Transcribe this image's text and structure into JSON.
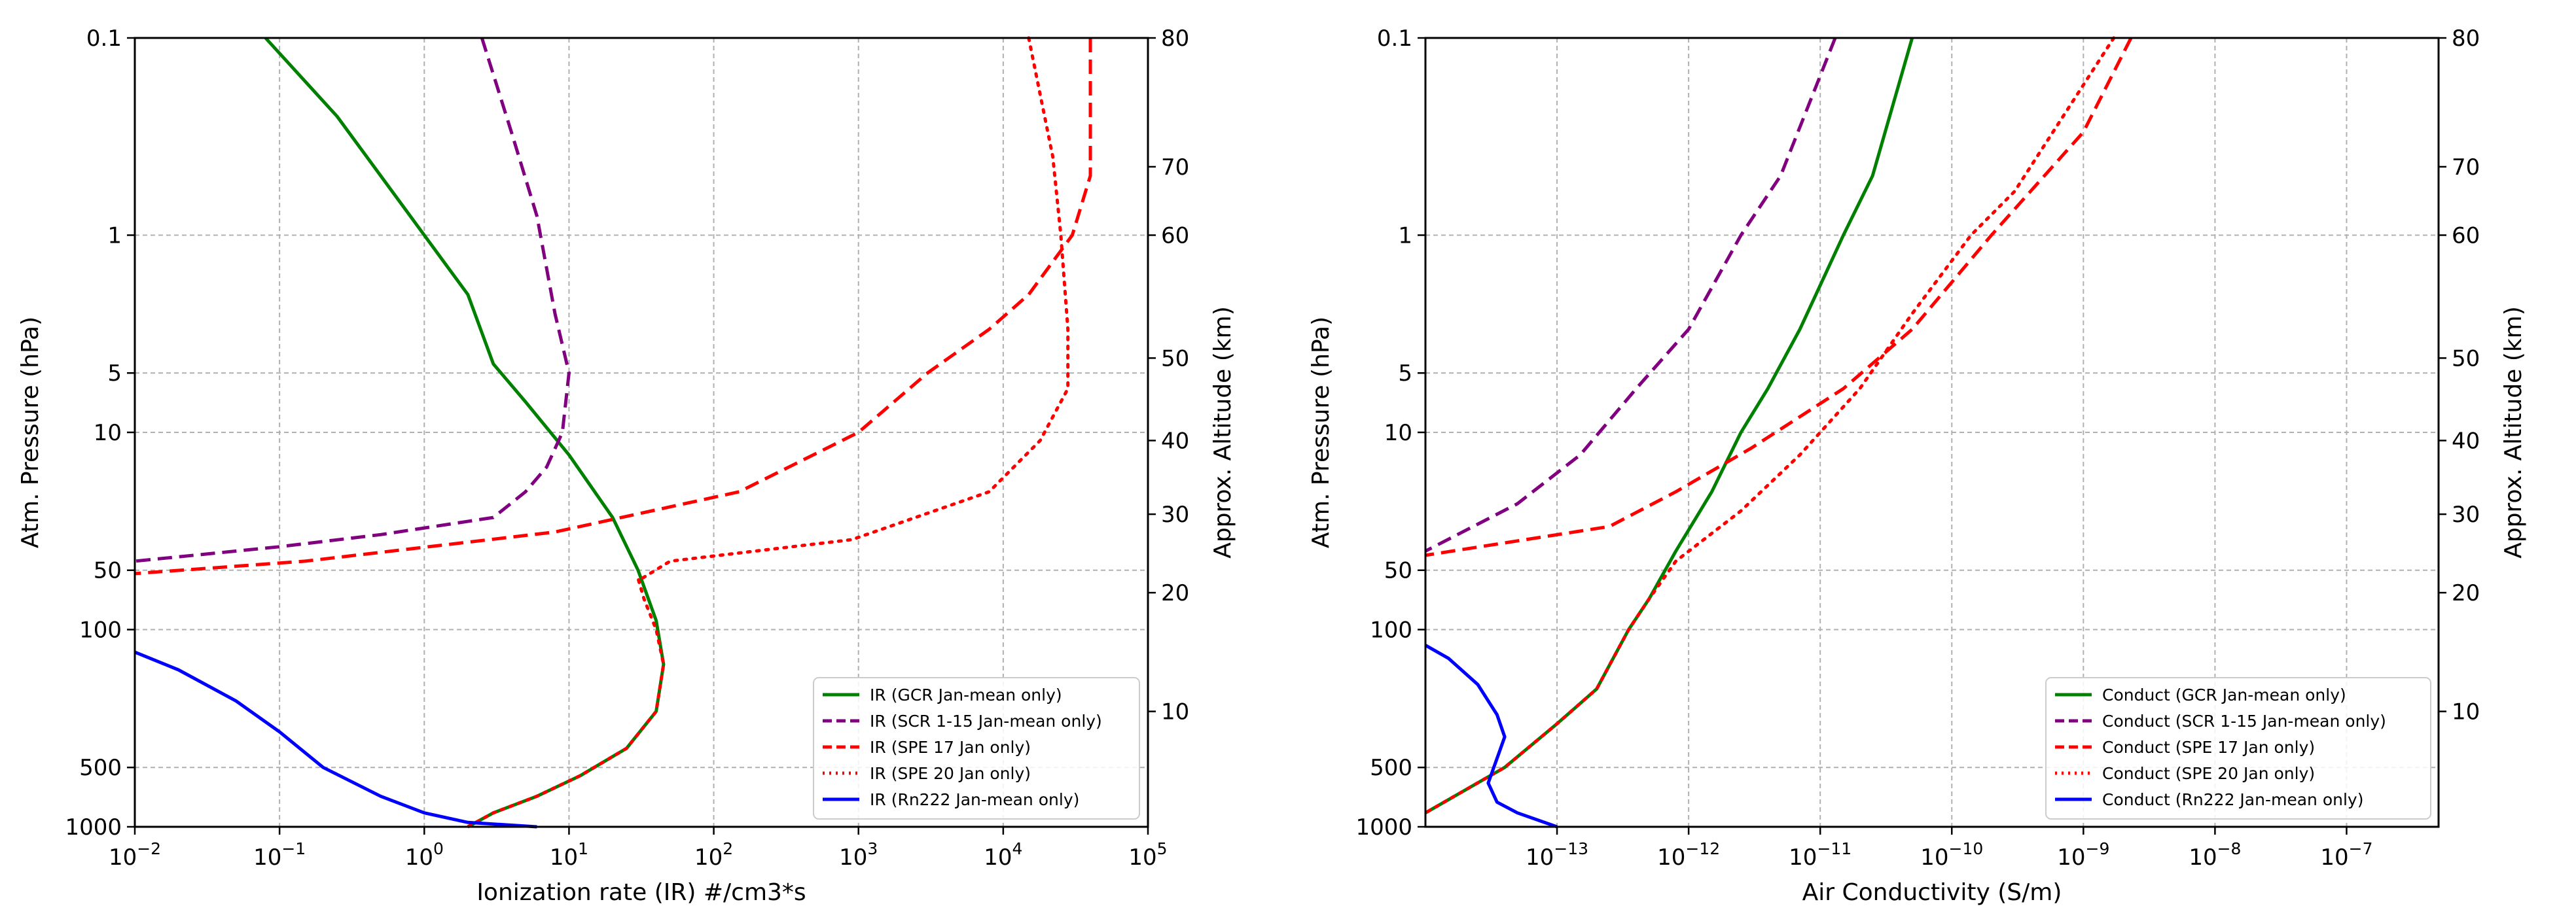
{
  "figure": {
    "description_free": true
  },
  "chart_data": [
    {
      "type": "line",
      "xscale": "log",
      "yscale": "log",
      "xlim": [
        0.01,
        100000
      ],
      "ylim_pressure": [
        1000,
        0.1
      ],
      "xlabel": "Ionization rate (IR) #/cm3*s",
      "ylabel": "Atm. Pressure (hPa)",
      "y2label": "Approx. Altitude (km)",
      "x_ticks": [
        {
          "value": 0.01,
          "base": "10",
          "exp": "−2"
        },
        {
          "value": 0.1,
          "base": "10",
          "exp": "−1"
        },
        {
          "value": 1,
          "base": "10",
          "exp": "0"
        },
        {
          "value": 10,
          "base": "10",
          "exp": "1"
        },
        {
          "value": 100,
          "base": "10",
          "exp": "2"
        },
        {
          "value": 1000,
          "base": "10",
          "exp": "3"
        },
        {
          "value": 10000,
          "base": "10",
          "exp": "4"
        },
        {
          "value": 100000,
          "base": "10",
          "exp": "5"
        }
      ],
      "y_ticks": [
        {
          "value": 0.1,
          "label": "0.1"
        },
        {
          "value": 1,
          "label": "1"
        },
        {
          "value": 5,
          "label": "5"
        },
        {
          "value": 10,
          "label": "10"
        },
        {
          "value": 50,
          "label": "50"
        },
        {
          "value": 100,
          "label": "100"
        },
        {
          "value": 500,
          "label": "500"
        },
        {
          "value": 1000,
          "label": "1000"
        }
      ],
      "altitude_ticks": [
        {
          "pressure": 0.1,
          "label": "80"
        },
        {
          "pressure": 0.45,
          "label": "70"
        },
        {
          "pressure": 1.0,
          "label": "60"
        },
        {
          "pressure": 4.2,
          "label": "50"
        },
        {
          "pressure": 11,
          "label": "40"
        },
        {
          "pressure": 26,
          "label": "30"
        },
        {
          "pressure": 65,
          "label": "20"
        },
        {
          "pressure": 260,
          "label": "10"
        }
      ],
      "legend_position": "lower-right",
      "series": [
        {
          "name": "IR (GCR Jan-mean only)",
          "color": "#008000",
          "style": "solid",
          "points": [
            [
              0.08,
              0.1
            ],
            [
              0.25,
              0.25
            ],
            [
              0.6,
              0.6
            ],
            [
              1.5,
              1.5
            ],
            [
              2,
              2
            ],
            [
              3,
              4.5
            ],
            [
              5,
              7
            ],
            [
              10,
              13
            ],
            [
              20,
              27
            ],
            [
              30,
              50
            ],
            [
              40,
              90
            ],
            [
              45,
              150
            ],
            [
              40,
              260
            ],
            [
              25,
              400
            ],
            [
              12,
              550
            ],
            [
              6,
              700
            ],
            [
              3,
              850
            ],
            [
              2,
              1000
            ]
          ]
        },
        {
          "name": "IR (SCR 1-15 Jan-mean only)",
          "color": "#800080",
          "style": "dashed",
          "points": [
            [
              2.5,
              0.1
            ],
            [
              4,
              0.3
            ],
            [
              6,
              0.8
            ],
            [
              8,
              2.5
            ],
            [
              10,
              5
            ],
            [
              9,
              10
            ],
            [
              7,
              15
            ],
            [
              5,
              20
            ],
            [
              3,
              27
            ],
            [
              0.5,
              33
            ],
            [
              0.1,
              38
            ],
            [
              0.01,
              45
            ]
          ]
        },
        {
          "name": "IR (SPE 17 Jan only)",
          "color": "#ff0000",
          "style": "dashed",
          "points": [
            [
              40000,
              0.1
            ],
            [
              40000,
              0.5
            ],
            [
              30000,
              1
            ],
            [
              15000,
              2
            ],
            [
              8000,
              3
            ],
            [
              3000,
              5
            ],
            [
              1000,
              10
            ],
            [
              150,
              20
            ],
            [
              8,
              32
            ],
            [
              0.15,
              45
            ],
            [
              0.01,
              52
            ]
          ]
        },
        {
          "name": "IR (SPE 20 Jan only)",
          "color": "#ff0000",
          "style": "dotted",
          "points": [
            [
              15000,
              0.1
            ],
            [
              22000,
              0.4
            ],
            [
              25000,
              1
            ],
            [
              28000,
              3
            ],
            [
              28000,
              6
            ],
            [
              18000,
              11
            ],
            [
              8000,
              20
            ],
            [
              900,
              35
            ],
            [
              50,
              45
            ],
            [
              32,
              55
            ],
            [
              30,
              55
            ],
            [
              33,
              70
            ],
            [
              40,
              100
            ],
            [
              45,
              150
            ],
            [
              40,
              260
            ],
            [
              25,
              400
            ],
            [
              12,
              550
            ],
            [
              6,
              700
            ],
            [
              3,
              850
            ],
            [
              2,
              1000
            ]
          ]
        },
        {
          "name": "IR (Rn222 Jan-mean only)",
          "color": "#0000ff",
          "style": "solid",
          "points": [
            [
              0.01,
              130
            ],
            [
              0.02,
              160
            ],
            [
              0.05,
              230
            ],
            [
              0.1,
              330
            ],
            [
              0.2,
              500
            ],
            [
              0.5,
              700
            ],
            [
              1,
              850
            ],
            [
              2,
              950
            ],
            [
              6,
              1000
            ]
          ]
        }
      ]
    },
    {
      "type": "line",
      "xscale": "log",
      "yscale": "log",
      "xlim": [
        1e-14,
        5e-07
      ],
      "ylim_pressure": [
        1000,
        0.1
      ],
      "xlabel": "Air Conductivity (S/m)",
      "ylabel": "Atm. Pressure (hPa)",
      "y2label": "Approx. Altitude (km)",
      "x_ticks": [
        {
          "value": 1e-13,
          "base": "10",
          "exp": "−13"
        },
        {
          "value": 1e-12,
          "base": "10",
          "exp": "−12"
        },
        {
          "value": 1e-11,
          "base": "10",
          "exp": "−11"
        },
        {
          "value": 1e-10,
          "base": "10",
          "exp": "−10"
        },
        {
          "value": 1e-09,
          "base": "10",
          "exp": "−9"
        },
        {
          "value": 1e-08,
          "base": "10",
          "exp": "−8"
        },
        {
          "value": 1e-07,
          "base": "10",
          "exp": "−7"
        }
      ],
      "y_ticks": [
        {
          "value": 0.1,
          "label": "0.1"
        },
        {
          "value": 1,
          "label": "1"
        },
        {
          "value": 5,
          "label": "5"
        },
        {
          "value": 10,
          "label": "10"
        },
        {
          "value": 50,
          "label": "50"
        },
        {
          "value": 100,
          "label": "100"
        },
        {
          "value": 500,
          "label": "500"
        },
        {
          "value": 1000,
          "label": "1000"
        }
      ],
      "altitude_ticks": [
        {
          "pressure": 0.1,
          "label": "80"
        },
        {
          "pressure": 0.45,
          "label": "70"
        },
        {
          "pressure": 1.0,
          "label": "60"
        },
        {
          "pressure": 4.2,
          "label": "50"
        },
        {
          "pressure": 11,
          "label": "40"
        },
        {
          "pressure": 26,
          "label": "30"
        },
        {
          "pressure": 65,
          "label": "20"
        },
        {
          "pressure": 260,
          "label": "10"
        }
      ],
      "legend_position": "lower-right",
      "series": [
        {
          "name": "Conduct (GCR Jan-mean only)",
          "color": "#008000",
          "style": "solid",
          "points": [
            [
              5e-11,
              0.1
            ],
            [
              2.5e-11,
              0.5
            ],
            [
              1.5e-11,
              1
            ],
            [
              7e-12,
              3
            ],
            [
              4e-12,
              6
            ],
            [
              2.5e-12,
              10
            ],
            [
              1.5e-12,
              20
            ],
            [
              8e-13,
              40
            ],
            [
              5e-13,
              70
            ],
            [
              3.5e-13,
              100
            ],
            [
              2e-13,
              200
            ],
            [
              1e-13,
              300
            ],
            [
              4e-14,
              500
            ],
            [
              1e-14,
              850
            ]
          ]
        },
        {
          "name": "Conduct (SCR 1-15 Jan-mean only)",
          "color": "#800080",
          "style": "dashed",
          "points": [
            [
              1.3e-11,
              0.1
            ],
            [
              5e-12,
              0.5
            ],
            [
              2.5e-12,
              1
            ],
            [
              1e-12,
              3
            ],
            [
              4e-13,
              6
            ],
            [
              1.5e-13,
              13
            ],
            [
              5e-14,
              23
            ],
            [
              1e-14,
              40
            ]
          ]
        },
        {
          "name": "Conduct (SPE 17 Jan only)",
          "color": "#ff0000",
          "style": "dashed",
          "points": [
            [
              2.3e-09,
              0.1
            ],
            [
              1e-09,
              0.3
            ],
            [
              2e-10,
              1
            ],
            [
              5e-11,
              3
            ],
            [
              1.5e-11,
              6
            ],
            [
              3e-12,
              12
            ],
            [
              8e-13,
              20
            ],
            [
              2.5e-13,
              30
            ],
            [
              1e-14,
              42
            ]
          ]
        },
        {
          "name": "Conduct (SPE 20 Jan only)",
          "color": "#ff0000",
          "style": "dotted",
          "points": [
            [
              1.7e-09,
              0.1
            ],
            [
              3e-10,
              0.6
            ],
            [
              1.4e-10,
              1
            ],
            [
              5e-11,
              2.5
            ],
            [
              2e-11,
              6
            ],
            [
              7e-12,
              13
            ],
            [
              2.5e-12,
              25
            ],
            [
              8e-13,
              45
            ],
            [
              5e-13,
              70
            ],
            [
              3.5e-13,
              100
            ],
            [
              2e-13,
              200
            ],
            [
              1e-13,
              300
            ],
            [
              4e-14,
              500
            ],
            [
              1e-14,
              850
            ]
          ]
        },
        {
          "name": "Conduct (Rn222 Jan-mean only)",
          "color": "#0000ff",
          "style": "solid",
          "points": [
            [
              1e-14,
              120
            ],
            [
              1.5e-14,
              140
            ],
            [
              2.5e-14,
              190
            ],
            [
              3.5e-14,
              270
            ],
            [
              4e-14,
              350
            ],
            [
              3.5e-14,
              450
            ],
            [
              3e-14,
              600
            ],
            [
              3.5e-14,
              750
            ],
            [
              5e-14,
              850
            ],
            [
              1e-13,
              1000
            ]
          ]
        }
      ]
    }
  ]
}
